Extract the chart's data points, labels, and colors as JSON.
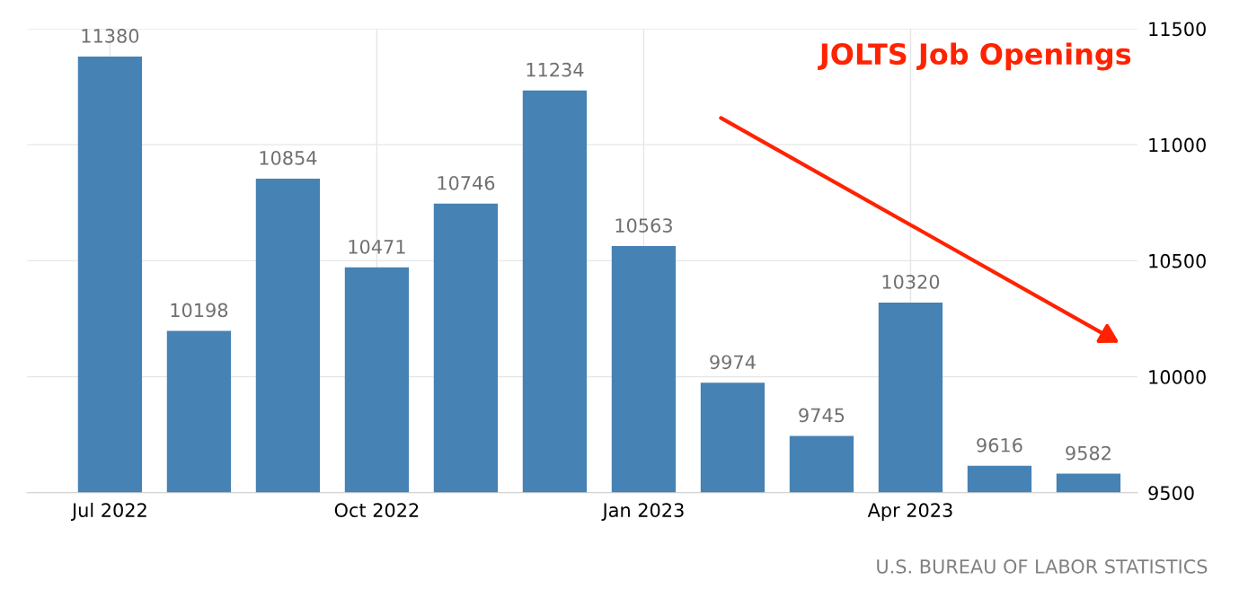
{
  "chart_data": {
    "type": "bar",
    "title": "JOLTS Job Openings",
    "categories": [
      "Jul 2022",
      null,
      null,
      "Oct 2022",
      null,
      null,
      "Jan 2023",
      null,
      null,
      "Apr 2023",
      null,
      null
    ],
    "values": [
      11380,
      10198,
      10854,
      10471,
      10746,
      11234,
      10563,
      9974,
      9745,
      10320,
      9616,
      9582
    ],
    "color": "#4682b4",
    "ylim": [
      9500,
      11500
    ],
    "yticks": [
      9500,
      10000,
      10500,
      11000,
      11500
    ],
    "grid": true,
    "data_labels": true,
    "annotations": [
      "U.S. BUREAU OF LABOR STATISTICS"
    ]
  }
}
